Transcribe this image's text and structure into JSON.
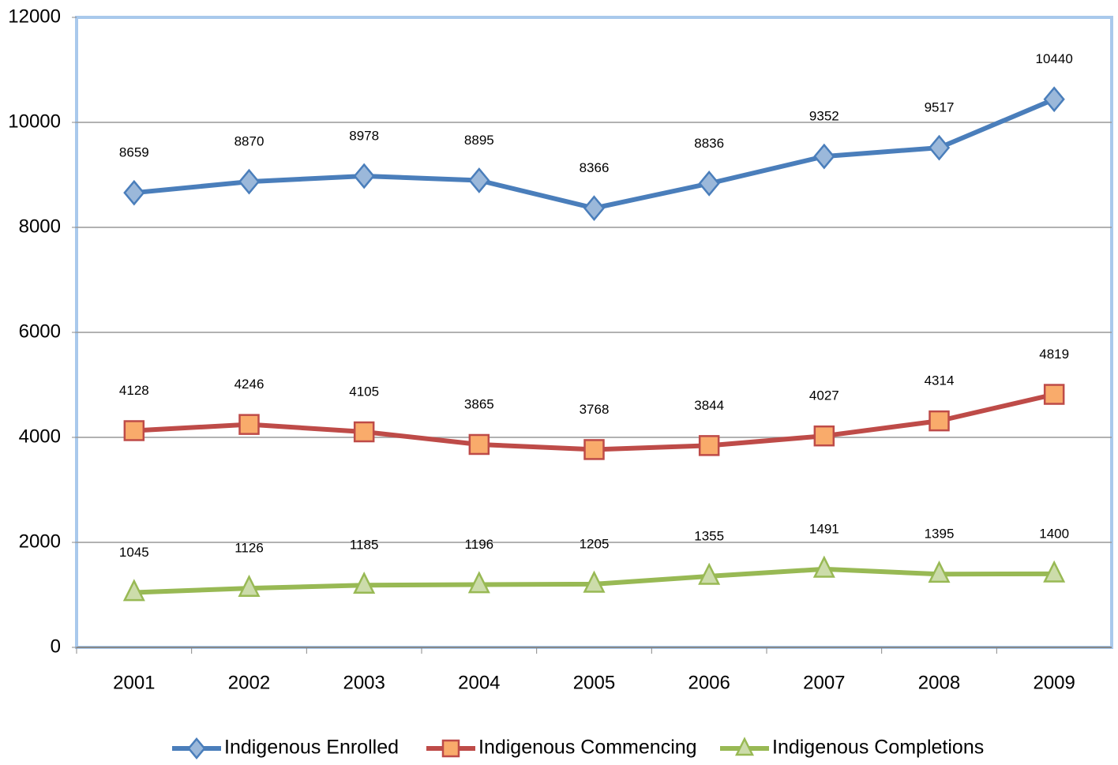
{
  "chart_data": {
    "type": "line",
    "categories": [
      "2001",
      "2002",
      "2003",
      "2004",
      "2005",
      "2006",
      "2007",
      "2008",
      "2009"
    ],
    "series": [
      {
        "name": "Indigenous Enrolled",
        "color": "#4a7ebb",
        "marker": "diamond",
        "values": [
          8659,
          8870,
          8978,
          8895,
          8366,
          8836,
          9352,
          9517,
          10440
        ]
      },
      {
        "name": "Indigenous Commencing",
        "color": "#be4b48",
        "marker": "square",
        "values": [
          4128,
          4246,
          4105,
          3865,
          3768,
          3844,
          4027,
          4314,
          4819
        ]
      },
      {
        "name": "Indigenous Completions",
        "color": "#98b954",
        "marker": "triangle",
        "values": [
          1045,
          1126,
          1185,
          1196,
          1205,
          1355,
          1491,
          1395,
          1400
        ]
      }
    ],
    "ylim": [
      0,
      12000
    ],
    "yticks": [
      0,
      2000,
      4000,
      6000,
      8000,
      10000,
      12000
    ],
    "grid": true,
    "legend": "bottom"
  }
}
